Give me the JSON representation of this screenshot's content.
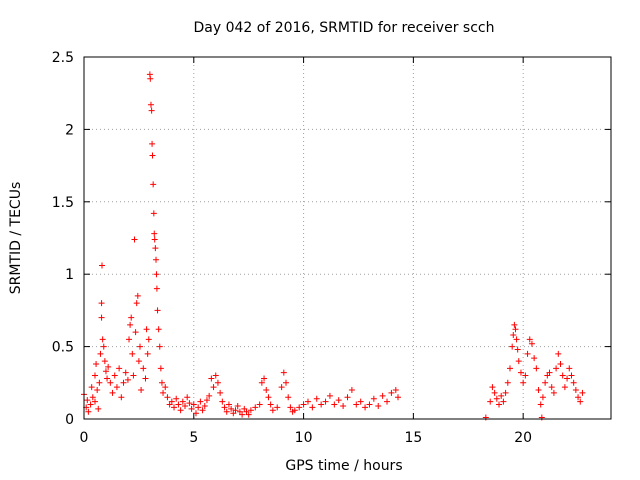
{
  "chart_data": {
    "type": "scatter",
    "title": "Day 042 of 2016, SRMTID for receiver scch",
    "xlabel": "GPS time / hours",
    "ylabel": "SRMTID / TECUs",
    "xlim": [
      0,
      24
    ],
    "ylim": [
      0,
      2.5
    ],
    "xticks": [
      0,
      5,
      10,
      15,
      20
    ],
    "xtick_labels": [
      "0",
      "5",
      "10",
      "15",
      "20"
    ],
    "yticks": [
      0,
      0.5,
      1,
      1.5,
      2,
      2.5
    ],
    "ytick_labels": [
      "0",
      "0.5",
      "1",
      "1.5",
      "2",
      "2.5"
    ],
    "grid": true,
    "marker": "+",
    "color": "#ff0000",
    "series": [
      {
        "name": "SRMTID",
        "points": [
          [
            0.0,
            0.17
          ],
          [
            0.1,
            0.08
          ],
          [
            0.15,
            0.13
          ],
          [
            0.2,
            0.05
          ],
          [
            0.3,
            0.1
          ],
          [
            0.35,
            0.22
          ],
          [
            0.4,
            0.15
          ],
          [
            0.5,
            0.3
          ],
          [
            0.5,
            0.12
          ],
          [
            0.55,
            0.38
          ],
          [
            0.6,
            0.2
          ],
          [
            0.65,
            0.07
          ],
          [
            0.7,
            0.25
          ],
          [
            0.75,
            0.45
          ],
          [
            0.8,
            0.8
          ],
          [
            0.8,
            0.7
          ],
          [
            0.82,
            1.06
          ],
          [
            0.85,
            0.55
          ],
          [
            0.9,
            0.5
          ],
          [
            0.95,
            0.4
          ],
          [
            1.0,
            0.33
          ],
          [
            1.05,
            0.28
          ],
          [
            1.1,
            0.36
          ],
          [
            1.2,
            0.25
          ],
          [
            1.3,
            0.18
          ],
          [
            1.4,
            0.3
          ],
          [
            1.5,
            0.22
          ],
          [
            1.6,
            0.35
          ],
          [
            1.7,
            0.15
          ],
          [
            1.8,
            0.25
          ],
          [
            1.9,
            0.32
          ],
          [
            2.0,
            0.27
          ],
          [
            2.05,
            0.55
          ],
          [
            2.1,
            0.65
          ],
          [
            2.15,
            0.7
          ],
          [
            2.2,
            0.45
          ],
          [
            2.25,
            0.3
          ],
          [
            2.3,
            1.24
          ],
          [
            2.35,
            0.6
          ],
          [
            2.4,
            0.8
          ],
          [
            2.45,
            0.85
          ],
          [
            2.5,
            0.4
          ],
          [
            2.55,
            0.5
          ],
          [
            2.6,
            0.2
          ],
          [
            2.7,
            0.35
          ],
          [
            2.8,
            0.28
          ],
          [
            2.85,
            0.62
          ],
          [
            2.9,
            0.45
          ],
          [
            2.95,
            0.55
          ],
          [
            3.0,
            2.38
          ],
          [
            3.02,
            2.35
          ],
          [
            3.05,
            2.17
          ],
          [
            3.08,
            2.13
          ],
          [
            3.1,
            1.9
          ],
          [
            3.12,
            1.82
          ],
          [
            3.15,
            1.62
          ],
          [
            3.18,
            1.42
          ],
          [
            3.2,
            1.28
          ],
          [
            3.22,
            1.24
          ],
          [
            3.25,
            1.18
          ],
          [
            3.28,
            1.1
          ],
          [
            3.3,
            1.0
          ],
          [
            3.32,
            0.9
          ],
          [
            3.35,
            0.75
          ],
          [
            3.4,
            0.62
          ],
          [
            3.45,
            0.5
          ],
          [
            3.5,
            0.35
          ],
          [
            3.55,
            0.25
          ],
          [
            3.6,
            0.18
          ],
          [
            3.7,
            0.22
          ],
          [
            3.8,
            0.15
          ],
          [
            3.9,
            0.1
          ],
          [
            4.0,
            0.12
          ],
          [
            4.1,
            0.08
          ],
          [
            4.2,
            0.14
          ],
          [
            4.3,
            0.1
          ],
          [
            4.4,
            0.06
          ],
          [
            4.5,
            0.12
          ],
          [
            4.6,
            0.09
          ],
          [
            4.7,
            0.15
          ],
          [
            4.8,
            0.11
          ],
          [
            4.9,
            0.07
          ],
          [
            5.0,
            0.1
          ],
          [
            5.1,
            0.04
          ],
          [
            5.2,
            0.08
          ],
          [
            5.3,
            0.12
          ],
          [
            5.4,
            0.06
          ],
          [
            5.5,
            0.09
          ],
          [
            5.6,
            0.13
          ],
          [
            5.7,
            0.16
          ],
          [
            5.8,
            0.28
          ],
          [
            5.9,
            0.22
          ],
          [
            6.0,
            0.3
          ],
          [
            6.1,
            0.25
          ],
          [
            6.2,
            0.18
          ],
          [
            6.3,
            0.12
          ],
          [
            6.4,
            0.08
          ],
          [
            6.5,
            0.05
          ],
          [
            6.6,
            0.1
          ],
          [
            6.7,
            0.07
          ],
          [
            6.8,
            0.04
          ],
          [
            6.9,
            0.06
          ],
          [
            7.0,
            0.09
          ],
          [
            7.1,
            0.05
          ],
          [
            7.2,
            0.03
          ],
          [
            7.3,
            0.07
          ],
          [
            7.4,
            0.05
          ],
          [
            7.5,
            0.03
          ],
          [
            7.6,
            0.06
          ],
          [
            7.8,
            0.08
          ],
          [
            8.0,
            0.1
          ],
          [
            8.1,
            0.25
          ],
          [
            8.2,
            0.28
          ],
          [
            8.3,
            0.2
          ],
          [
            8.4,
            0.15
          ],
          [
            8.5,
            0.1
          ],
          [
            8.6,
            0.06
          ],
          [
            8.8,
            0.08
          ],
          [
            9.0,
            0.22
          ],
          [
            9.1,
            0.32
          ],
          [
            9.2,
            0.25
          ],
          [
            9.3,
            0.15
          ],
          [
            9.4,
            0.08
          ],
          [
            9.5,
            0.05
          ],
          [
            9.6,
            0.06
          ],
          [
            9.8,
            0.08
          ],
          [
            10.0,
            0.1
          ],
          [
            10.2,
            0.12
          ],
          [
            10.4,
            0.08
          ],
          [
            10.6,
            0.14
          ],
          [
            10.8,
            0.1
          ],
          [
            11.0,
            0.12
          ],
          [
            11.2,
            0.16
          ],
          [
            11.4,
            0.1
          ],
          [
            11.6,
            0.13
          ],
          [
            11.8,
            0.09
          ],
          [
            12.0,
            0.15
          ],
          [
            12.2,
            0.2
          ],
          [
            12.4,
            0.1
          ],
          [
            12.6,
            0.12
          ],
          [
            12.8,
            0.08
          ],
          [
            13.0,
            0.1
          ],
          [
            13.2,
            0.14
          ],
          [
            13.4,
            0.09
          ],
          [
            13.6,
            0.16
          ],
          [
            13.8,
            0.12
          ],
          [
            14.0,
            0.18
          ],
          [
            14.2,
            0.2
          ],
          [
            14.3,
            0.15
          ],
          [
            18.3,
            0.01
          ],
          [
            18.5,
            0.12
          ],
          [
            18.6,
            0.22
          ],
          [
            18.7,
            0.18
          ],
          [
            18.8,
            0.14
          ],
          [
            18.9,
            0.1
          ],
          [
            19.0,
            0.16
          ],
          [
            19.1,
            0.12
          ],
          [
            19.2,
            0.18
          ],
          [
            19.3,
            0.25
          ],
          [
            19.4,
            0.35
          ],
          [
            19.5,
            0.5
          ],
          [
            19.55,
            0.58
          ],
          [
            19.6,
            0.65
          ],
          [
            19.65,
            0.62
          ],
          [
            19.7,
            0.55
          ],
          [
            19.75,
            0.48
          ],
          [
            19.8,
            0.4
          ],
          [
            19.9,
            0.32
          ],
          [
            20.0,
            0.25
          ],
          [
            20.1,
            0.3
          ],
          [
            20.2,
            0.45
          ],
          [
            20.3,
            0.55
          ],
          [
            20.4,
            0.52
          ],
          [
            20.5,
            0.42
          ],
          [
            20.6,
            0.35
          ],
          [
            20.7,
            0.2
          ],
          [
            20.8,
            0.1
          ],
          [
            20.85,
            0.01
          ],
          [
            20.9,
            0.15
          ],
          [
            21.0,
            0.25
          ],
          [
            21.1,
            0.3
          ],
          [
            21.2,
            0.32
          ],
          [
            21.3,
            0.22
          ],
          [
            21.4,
            0.18
          ],
          [
            21.5,
            0.35
          ],
          [
            21.6,
            0.45
          ],
          [
            21.7,
            0.38
          ],
          [
            21.8,
            0.3
          ],
          [
            21.9,
            0.22
          ],
          [
            22.0,
            0.28
          ],
          [
            22.1,
            0.35
          ],
          [
            22.2,
            0.3
          ],
          [
            22.3,
            0.25
          ],
          [
            22.4,
            0.2
          ],
          [
            22.5,
            0.15
          ],
          [
            22.6,
            0.12
          ],
          [
            22.7,
            0.18
          ]
        ]
      }
    ]
  }
}
